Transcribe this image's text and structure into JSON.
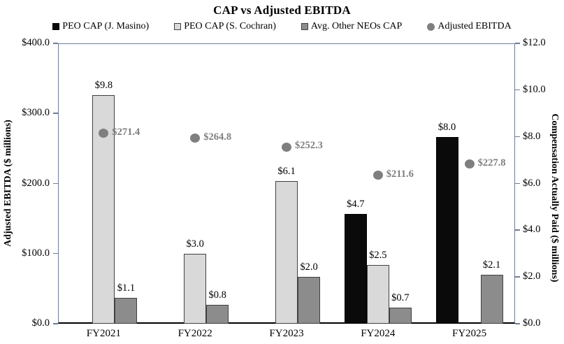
{
  "chart_data": {
    "type": "bar",
    "title": "CAP vs Adjusted EBITDA",
    "categories": [
      "FY2021",
      "FY2022",
      "FY2023",
      "FY2024",
      "FY2025"
    ],
    "series": [
      {
        "name": "PEO CAP (J. Masino)",
        "type": "bar",
        "axis": "right",
        "color": "#0a0a0a",
        "border": "#000000",
        "values": [
          null,
          null,
          null,
          4.7,
          8.0
        ],
        "labels": [
          "",
          "",
          "",
          "$4.7",
          "$8.0"
        ]
      },
      {
        "name": "PEO CAP (S. Cochran)",
        "type": "bar",
        "axis": "right",
        "color": "#d9d9d9",
        "border": "#404040",
        "values": [
          9.8,
          3.0,
          6.1,
          2.5,
          null
        ],
        "labels": [
          "$9.8",
          "$3.0",
          "$6.1",
          "$2.5",
          ""
        ]
      },
      {
        "name": "Avg. Other NEOs CAP",
        "type": "bar",
        "axis": "right",
        "color": "#8c8c8c",
        "border": "#404040",
        "values": [
          1.1,
          0.8,
          2.0,
          0.7,
          2.1
        ],
        "labels": [
          "$1.1",
          "$0.8",
          "$2.0",
          "$0.7",
          "$2.1"
        ]
      },
      {
        "name": "Adjusted EBITDA",
        "type": "scatter",
        "axis": "left",
        "color": "#7f7f7f",
        "values": [
          271.4,
          264.8,
          252.3,
          211.6,
          227.8
        ],
        "labels": [
          "$271.4",
          "$264.8",
          "$252.3",
          "$211.6",
          "$227.8"
        ]
      }
    ],
    "left_axis": {
      "title": "Adjusted EBITDA ($ millions)",
      "min": 0,
      "max": 400,
      "ticks": [
        "$400.0",
        "$300.0",
        "$200.0",
        "$100.0",
        "$0.0"
      ]
    },
    "right_axis": {
      "title": "Compensation Actually Paid ($ millions)",
      "min": 0,
      "max": 12,
      "ticks": [
        "$12.0",
        "$10.0",
        "$8.0",
        "$6.0",
        "$4.0",
        "$2.0",
        "$0.0"
      ]
    },
    "colors": {
      "axis_line": "#6f7d96",
      "bottom_axis_line": "#000000",
      "ebitda_label": "#7f7f7f",
      "text": "#000000",
      "background": "#ffffff"
    },
    "legend_position": "top",
    "grid": "off"
  }
}
